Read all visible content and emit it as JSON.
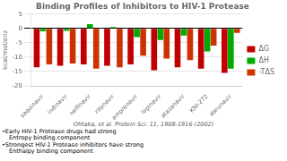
{
  "chart_data": {
    "type": "bar",
    "title": "Binding Profiles of Inhibitors to HIV-1 Protease",
    "subtitle": "Ohtaka, et al. Protein Sci. 11, 1908-1916 (2002)",
    "ylabel": "kcal/mol/enz",
    "categories": [
      "saquinavir",
      "indinavir",
      "nelfinavir",
      "ritonavir",
      "amprenavir",
      "lopinavir",
      "atazanavir",
      "KNI-272",
      "darunavir"
    ],
    "series": [
      {
        "name": "ΔG",
        "color": "#c00000",
        "values": [
          -13.5,
          -13.0,
          -12.5,
          -13.0,
          -12.5,
          -14.5,
          -13.5,
          -14.0,
          -15.5
        ]
      },
      {
        "name": "ΔH",
        "color": "#00aa00",
        "values": [
          -1.0,
          -0.8,
          1.5,
          0.5,
          -3.0,
          -4.0,
          -2.5,
          -8.0,
          -14.0
        ]
      },
      {
        "name": "-TΔS",
        "color": "#cc3300",
        "values": [
          -12.5,
          -12.2,
          -14.0,
          -13.5,
          -9.5,
          -10.5,
          -11.0,
          -6.0,
          -1.5
        ]
      }
    ],
    "ylim": [
      -20,
      5
    ],
    "yticks": [
      -20,
      -15,
      -10,
      -5,
      0,
      5
    ],
    "grid": true,
    "legend": "right",
    "annotations": [
      "•Early HIV-1 Protease drugs had strong",
      "Entropy binding component",
      "•Strongest HIV-1 Protease inhibitors have strong",
      "Enthalpy binding component"
    ]
  }
}
